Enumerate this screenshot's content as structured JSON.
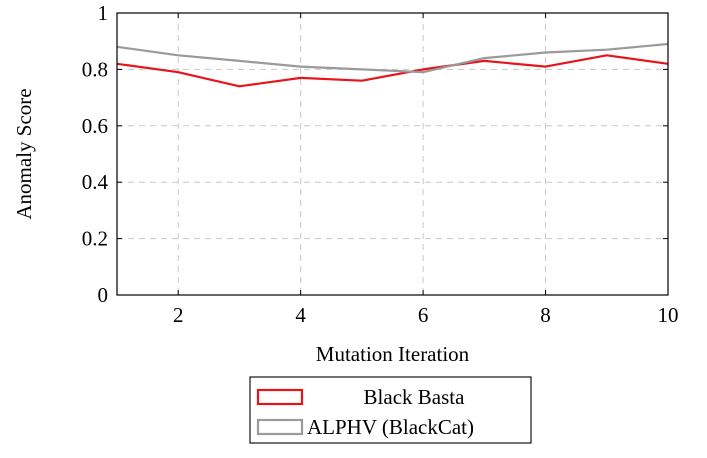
{
  "chart_data": {
    "type": "line",
    "xlabel": "Mutation Iteration",
    "ylabel": "Anomaly Score",
    "xlim": [
      1,
      10
    ],
    "ylim": [
      0,
      1
    ],
    "xticks": [
      2,
      4,
      6,
      8,
      10
    ],
    "yticks": [
      0,
      0.2,
      0.4,
      0.6,
      0.8,
      1
    ],
    "grid": true,
    "legend": "below",
    "x": [
      1,
      2,
      3,
      4,
      5,
      6,
      7,
      8,
      9,
      10
    ],
    "series": [
      {
        "name": "Black Basta",
        "color": "#e8141c",
        "values": [
          0.82,
          0.79,
          0.74,
          0.77,
          0.76,
          0.8,
          0.83,
          0.81,
          0.85,
          0.82
        ]
      },
      {
        "name": "ALPHV (BlackCat)",
        "color": "#9a9a9a",
        "values": [
          0.88,
          0.85,
          0.83,
          0.81,
          0.8,
          0.79,
          0.84,
          0.86,
          0.87,
          0.89
        ]
      }
    ]
  }
}
